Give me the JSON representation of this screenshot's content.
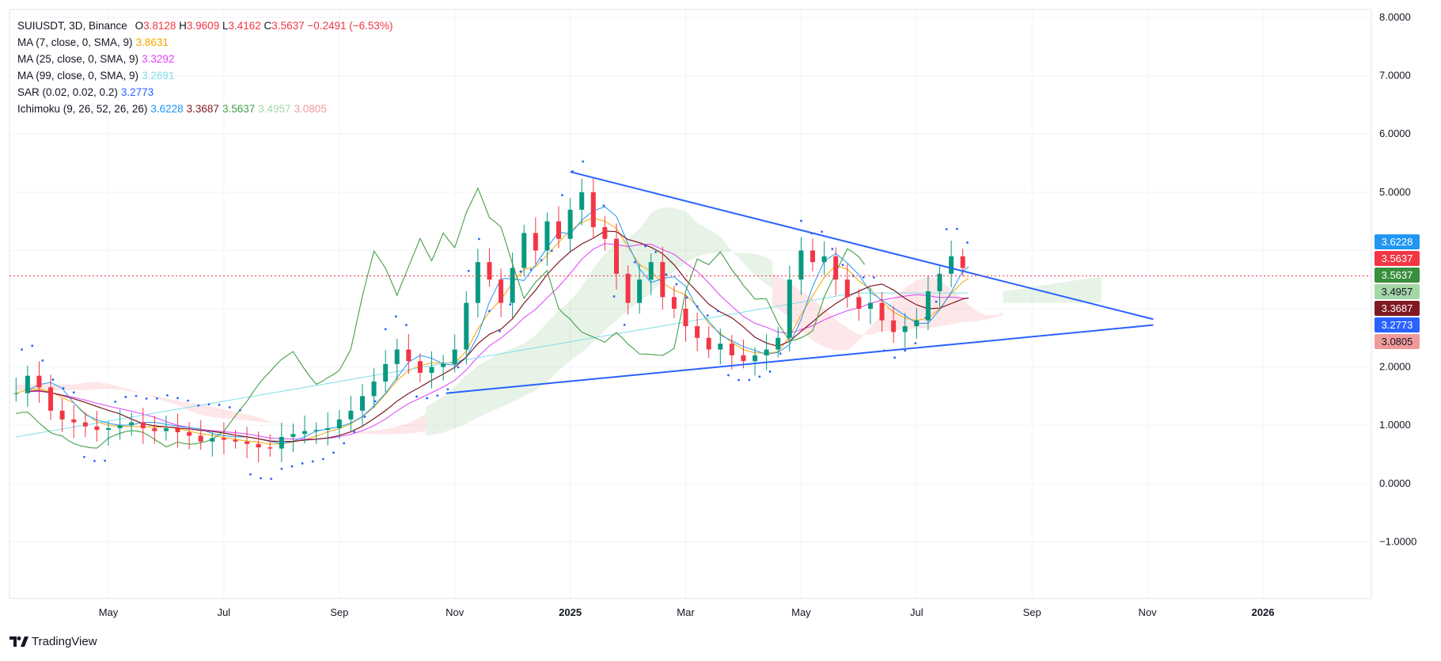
{
  "chart_data": {
    "type": "candlestick",
    "symbol_line": {
      "symbol": "SUIUSDT, 3D, Binance",
      "open_label": "O",
      "open": "3.8128",
      "high_label": "H",
      "high": "3.9609",
      "low_label": "L",
      "low": "3.4162",
      "close_label": "C",
      "close": "3.5637",
      "change": "−0.2491 (−6.53%)"
    },
    "indicators": [
      {
        "name": "MA (7, close, 0, SMA, 9)",
        "values": [
          "3.8631"
        ],
        "colors": [
          "#f7a600"
        ]
      },
      {
        "name": "MA (25, close, 0, SMA, 9)",
        "values": [
          "3.3292"
        ],
        "colors": [
          "#e040fb"
        ]
      },
      {
        "name": "MA (99, close, 0, SMA, 9)",
        "values": [
          "3.2691"
        ],
        "colors": [
          "#80deea"
        ]
      },
      {
        "name": "SAR (0.02, 0.02, 0.2)",
        "values": [
          "3.2773"
        ],
        "colors": [
          "#2962ff"
        ]
      },
      {
        "name": "Ichimoku (9, 26, 52, 26, 26)",
        "values": [
          "3.6228",
          "3.3687",
          "3.5637",
          "3.4957",
          "3.0805"
        ],
        "colors": [
          "#2196f3",
          "#801922",
          "#43a047",
          "#a5d6a7",
          "#ef9a9a"
        ]
      }
    ],
    "y_axis": {
      "min": -2.0,
      "max": 8.0,
      "ticks": [
        {
          "value": 8,
          "label": "8.0000"
        },
        {
          "value": 7,
          "label": "7.0000"
        },
        {
          "value": 6,
          "label": "6.0000"
        },
        {
          "value": 5,
          "label": "5.0000"
        },
        {
          "value": 2,
          "label": "2.0000"
        },
        {
          "value": 1,
          "label": "1.0000"
        },
        {
          "value": 0,
          "label": "0.0000"
        },
        {
          "value": -1,
          "label": "−1.0000"
        }
      ]
    },
    "x_axis": {
      "ticks": [
        {
          "t": 0,
          "label": "May",
          "bold": false
        },
        {
          "t": 2,
          "label": "Jul",
          "bold": false
        },
        {
          "t": 4,
          "label": "Sep",
          "bold": false
        },
        {
          "t": 6,
          "label": "Nov",
          "bold": false
        },
        {
          "t": 8,
          "label": "2025",
          "bold": true
        },
        {
          "t": 10,
          "label": "Mar",
          "bold": false
        },
        {
          "t": 12,
          "label": "May",
          "bold": false
        },
        {
          "t": 14,
          "label": "Jul",
          "bold": false
        },
        {
          "t": 16,
          "label": "Sep",
          "bold": false
        },
        {
          "t": 18,
          "label": "Nov",
          "bold": false
        },
        {
          "t": 20,
          "label": "2026",
          "bold": true
        }
      ]
    },
    "current_price": 3.5637,
    "price_tags": [
      {
        "value": 3.6228,
        "label": "3.6228",
        "color": "#2196f3",
        "text_color": "#ffffff"
      },
      {
        "value": 3.5637,
        "label": "3.5637",
        "color": "#f23645",
        "text_color": "#ffffff"
      },
      {
        "value": 3.5637,
        "label": "3.5637",
        "color": "#388e3c",
        "text_color": "#ffffff"
      },
      {
        "value": 3.4957,
        "label": "3.4957",
        "color": "#a5d6a7",
        "text_color": "#131722"
      },
      {
        "value": 3.3687,
        "label": "3.3687",
        "color": "#801922",
        "text_color": "#ffffff"
      },
      {
        "value": 3.2773,
        "label": "3.2773",
        "color": "#2962ff",
        "text_color": "#ffffff"
      },
      {
        "value": 3.0805,
        "label": "3.0805",
        "color": "#ef9a9a",
        "text_color": "#131722"
      }
    ],
    "trendlines": [
      {
        "name": "upper-trendline",
        "from": {
          "t": 8.0,
          "v": 5.35
        },
        "to": {
          "t": 18.1,
          "v": 2.82
        },
        "color": "#2962ff"
      },
      {
        "name": "lower-trendline",
        "from": {
          "t": 5.85,
          "v": 1.55
        },
        "to": {
          "t": 18.1,
          "v": 2.72
        },
        "color": "#2962ff"
      }
    ],
    "candles_close_path": [
      [
        -1.6,
        1.55
      ],
      [
        -1.4,
        1.85
      ],
      [
        -1.2,
        1.65
      ],
      [
        -1.0,
        1.25
      ],
      [
        -0.8,
        1.1
      ],
      [
        -0.6,
        1.05
      ],
      [
        -0.4,
        0.98
      ],
      [
        -0.2,
        0.92
      ],
      [
        0.0,
        0.95
      ],
      [
        0.2,
        1.0
      ],
      [
        0.4,
        1.05
      ],
      [
        0.6,
        0.95
      ],
      [
        0.8,
        0.9
      ],
      [
        1.0,
        0.95
      ],
      [
        1.2,
        0.88
      ],
      [
        1.4,
        0.82
      ],
      [
        1.6,
        0.72
      ],
      [
        1.8,
        0.78
      ],
      [
        2.0,
        0.75
      ],
      [
        2.2,
        0.72
      ],
      [
        2.4,
        0.68
      ],
      [
        2.6,
        0.62
      ],
      [
        2.8,
        0.6
      ],
      [
        3.0,
        0.8
      ],
      [
        3.2,
        0.85
      ],
      [
        3.4,
        0.9
      ],
      [
        3.6,
        0.92
      ],
      [
        3.8,
        0.95
      ],
      [
        4.0,
        1.1
      ],
      [
        4.2,
        1.25
      ],
      [
        4.4,
        1.5
      ],
      [
        4.6,
        1.75
      ],
      [
        4.8,
        2.05
      ],
      [
        5.0,
        2.3
      ],
      [
        5.2,
        2.1
      ],
      [
        5.4,
        1.9
      ],
      [
        5.6,
        2.0
      ],
      [
        5.8,
        2.05
      ],
      [
        6.0,
        2.3
      ],
      [
        6.2,
        3.1
      ],
      [
        6.4,
        3.8
      ],
      [
        6.6,
        3.5
      ],
      [
        6.8,
        3.1
      ],
      [
        7.0,
        3.7
      ],
      [
        7.2,
        4.3
      ],
      [
        7.4,
        4.0
      ],
      [
        7.6,
        4.5
      ],
      [
        7.8,
        4.2
      ],
      [
        8.0,
        4.7
      ],
      [
        8.2,
        5.0
      ],
      [
        8.4,
        4.4
      ],
      [
        8.6,
        4.2
      ],
      [
        8.8,
        3.6
      ],
      [
        9.0,
        3.1
      ],
      [
        9.2,
        3.5
      ],
      [
        9.4,
        3.8
      ],
      [
        9.6,
        3.2
      ],
      [
        9.8,
        3.0
      ],
      [
        10.0,
        2.7
      ],
      [
        10.2,
        2.5
      ],
      [
        10.4,
        2.3
      ],
      [
        10.6,
        2.4
      ],
      [
        10.8,
        2.2
      ],
      [
        11.0,
        2.1
      ],
      [
        11.2,
        2.2
      ],
      [
        11.4,
        2.3
      ],
      [
        11.6,
        2.5
      ],
      [
        11.8,
        3.5
      ],
      [
        12.0,
        4.0
      ],
      [
        12.2,
        3.8
      ],
      [
        12.4,
        3.9
      ],
      [
        12.6,
        3.5
      ],
      [
        12.8,
        3.2
      ],
      [
        13.0,
        3.0
      ],
      [
        13.2,
        3.1
      ],
      [
        13.4,
        2.8
      ],
      [
        13.6,
        2.6
      ],
      [
        13.8,
        2.7
      ],
      [
        14.0,
        2.8
      ],
      [
        14.2,
        3.3
      ],
      [
        14.4,
        3.6
      ],
      [
        14.6,
        3.9
      ],
      [
        14.8,
        3.7
      ],
      [
        14.9,
        3.56
      ]
    ]
  }
}
